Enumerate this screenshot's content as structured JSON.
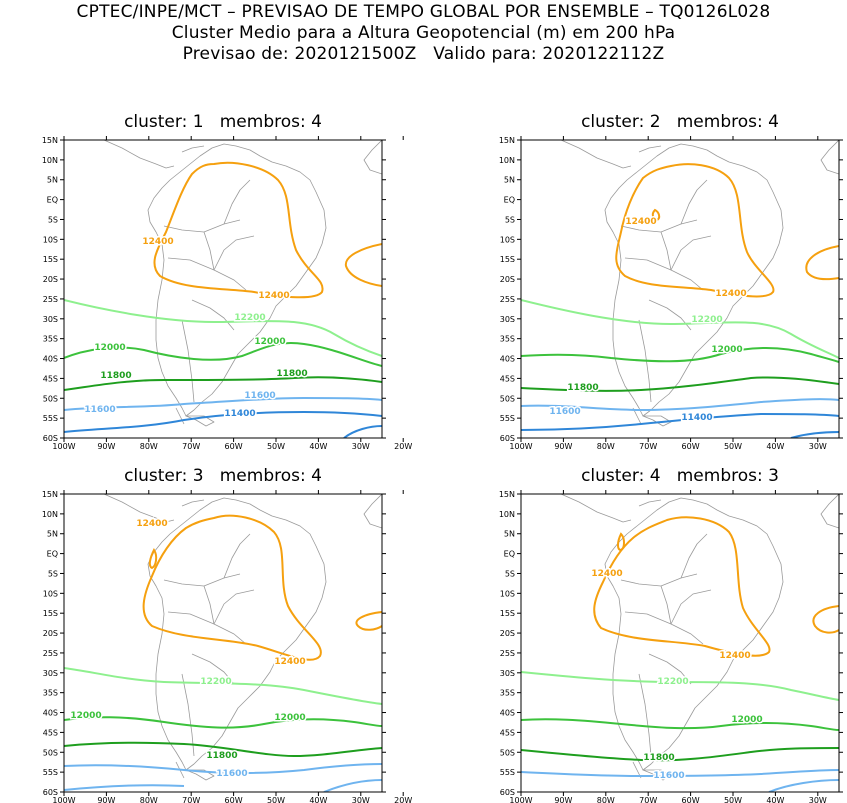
{
  "header": {
    "line1": "CPTEC/INPE/MCT – PREVISAO DE TEMPO GLOBAL POR ENSEMBLE – TQ0126L028",
    "line2": "Cluster Medio para a Altura Geopotencial (m) em 200 hPa",
    "line3": "Previsao de: 2020121500Z   Valido para: 2020122112Z"
  },
  "axes": {
    "lat_labels": [
      "15N",
      "10N",
      "5N",
      "EQ",
      "5S",
      "10S",
      "15S",
      "20S",
      "25S",
      "30S",
      "35S",
      "40S",
      "45S",
      "50S",
      "55S",
      "60S"
    ],
    "lon_labels": [
      "100W",
      "90W",
      "80W",
      "70W",
      "60W",
      "50W",
      "40W",
      "30W",
      "20W"
    ],
    "lat_range": [
      -60,
      15
    ],
    "lon_range": [
      -100,
      -25
    ]
  },
  "colors": {
    "c12400": "#f5a00f",
    "c12200": "#8ef08e",
    "c12000": "#3cc23c",
    "c11800": "#1e9e1e",
    "c11600": "#6fb4ef",
    "c11400": "#2f86d8",
    "coast": "#9a9a9a"
  },
  "panels": [
    {
      "title": "cluster: 1   membros: 4",
      "contours": [
        {
          "value": 12400,
          "label": "12400",
          "label2": "12400"
        },
        {
          "value": 12200,
          "label": "12200"
        },
        {
          "value": 12000,
          "label": "12000",
          "label2": "12000"
        },
        {
          "value": 11800,
          "label": "11800",
          "label2": "11800"
        },
        {
          "value": 11600,
          "label": "11600",
          "label2": "11600"
        },
        {
          "value": 11400,
          "label": "11400"
        }
      ]
    },
    {
      "title": "cluster: 2   membros: 4",
      "contours": [
        {
          "value": 12400,
          "label": "12400",
          "label2": "12400"
        },
        {
          "value": 12200,
          "label": "12200"
        },
        {
          "value": 12000,
          "label": "12000"
        },
        {
          "value": 11800,
          "label": "11800"
        },
        {
          "value": 11600,
          "label": "11600"
        },
        {
          "value": 11400,
          "label": "11400"
        }
      ]
    },
    {
      "title": "cluster: 3   membros: 4",
      "contours": [
        {
          "value": 12400,
          "label": "12400",
          "label2": "12400"
        },
        {
          "value": 12200,
          "label": "12200"
        },
        {
          "value": 12000,
          "label": "12000",
          "label2": "12000"
        },
        {
          "value": 11800,
          "label": "11800"
        },
        {
          "value": 11600,
          "label": "11600"
        }
      ]
    },
    {
      "title": "cluster: 4   membros: 3",
      "contours": [
        {
          "value": 12400,
          "label": "12400",
          "label2": "12400"
        },
        {
          "value": 12200,
          "label": "12200"
        },
        {
          "value": 12000,
          "label": "12000"
        },
        {
          "value": 11800,
          "label": "11800"
        },
        {
          "value": 11600,
          "label": "11600"
        }
      ]
    }
  ]
}
